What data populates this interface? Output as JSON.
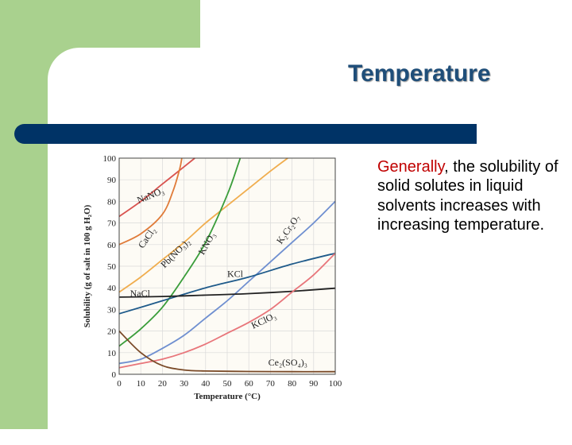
{
  "slide": {
    "title": "Temperature",
    "body_highlight": "Generally",
    "body_rest": ", the solubility of solid solutes in liquid solvents increases with increasing temperature."
  },
  "colors": {
    "side_green": "#a9d18e",
    "title_bar": "#003366",
    "title_text": "#1f4e79",
    "highlight": "#c00000"
  },
  "chart_data": {
    "type": "line",
    "title": "",
    "xlabel": "Temperature (°C)",
    "ylabel": "Solubility (g of salt in 100 g H₂O)",
    "xlim": [
      0,
      100
    ],
    "ylim": [
      0,
      100
    ],
    "x_ticks": [
      0,
      10,
      20,
      30,
      40,
      50,
      60,
      70,
      80,
      90,
      100
    ],
    "y_ticks": [
      0,
      10,
      20,
      30,
      40,
      50,
      60,
      70,
      80,
      90,
      100
    ],
    "grid": true,
    "series": [
      {
        "name": "NaNO₃",
        "color": "#d9534f",
        "label_at": [
          9,
          79
        ],
        "label_angle": -22,
        "points": [
          [
            0,
            73
          ],
          [
            10,
            80
          ],
          [
            20,
            88
          ],
          [
            30,
            96
          ],
          [
            35,
            100
          ]
        ]
      },
      {
        "name": "CaCl₂",
        "color": "#e07b39",
        "label_at": [
          11,
          58
        ],
        "label_angle": -55,
        "points": [
          [
            0,
            60
          ],
          [
            10,
            65
          ],
          [
            20,
            74
          ],
          [
            25,
            85
          ],
          [
            28,
            95
          ],
          [
            29,
            100
          ]
        ]
      },
      {
        "name": "Pb(NO₃)₂",
        "color": "#f0ad4e",
        "label_at": [
          21,
          49
        ],
        "label_angle": -45,
        "points": [
          [
            0,
            38
          ],
          [
            10,
            45
          ],
          [
            20,
            53
          ],
          [
            30,
            61
          ],
          [
            40,
            70
          ],
          [
            50,
            78
          ],
          [
            60,
            86
          ],
          [
            70,
            94
          ],
          [
            78,
            100
          ]
        ]
      },
      {
        "name": "KNO₃",
        "color": "#3a9d3a",
        "label_at": [
          39,
          55
        ],
        "label_angle": -60,
        "points": [
          [
            0,
            13
          ],
          [
            10,
            21
          ],
          [
            20,
            31
          ],
          [
            30,
            45
          ],
          [
            40,
            61
          ],
          [
            50,
            83
          ],
          [
            55,
            97
          ],
          [
            56,
            100
          ]
        ]
      },
      {
        "name": "K₂Cr₂O₇",
        "color": "#6f8fd0",
        "label_at": [
          75,
          60
        ],
        "label_angle": -55,
        "points": [
          [
            0,
            5
          ],
          [
            10,
            7
          ],
          [
            20,
            12
          ],
          [
            30,
            18
          ],
          [
            40,
            26
          ],
          [
            50,
            34
          ],
          [
            60,
            43
          ],
          [
            70,
            52
          ],
          [
            80,
            61
          ],
          [
            90,
            70
          ],
          [
            100,
            80
          ]
        ]
      },
      {
        "name": "KCl",
        "color": "#1e5a8a",
        "label_at": [
          50,
          45
        ],
        "label_angle": 0,
        "points": [
          [
            0,
            28
          ],
          [
            20,
            34
          ],
          [
            40,
            40
          ],
          [
            60,
            45
          ],
          [
            80,
            51
          ],
          [
            100,
            56
          ]
        ]
      },
      {
        "name": "NaCl",
        "color": "#222222",
        "label_at": [
          5,
          36
        ],
        "label_angle": 0,
        "points": [
          [
            0,
            35.7
          ],
          [
            20,
            36
          ],
          [
            40,
            36.6
          ],
          [
            60,
            37.3
          ],
          [
            80,
            38.4
          ],
          [
            100,
            39.8
          ]
        ]
      },
      {
        "name": "KClO₃",
        "color": "#e8757a",
        "label_at": [
          62,
          21
        ],
        "label_angle": -25,
        "points": [
          [
            0,
            3
          ],
          [
            10,
            5
          ],
          [
            20,
            7
          ],
          [
            30,
            10
          ],
          [
            40,
            14
          ],
          [
            50,
            19
          ],
          [
            60,
            24
          ],
          [
            70,
            30
          ],
          [
            80,
            38
          ],
          [
            90,
            46
          ],
          [
            100,
            56
          ]
        ]
      },
      {
        "name": "Ce₂(SO₄)₃",
        "color": "#7a4a28",
        "label_at": [
          69,
          4
        ],
        "label_angle": 0,
        "points": [
          [
            0,
            20
          ],
          [
            10,
            10
          ],
          [
            20,
            4
          ],
          [
            30,
            2
          ],
          [
            40,
            1.5
          ],
          [
            60,
            1.3
          ],
          [
            80,
            1.2
          ],
          [
            100,
            1.2
          ]
        ]
      }
    ]
  }
}
